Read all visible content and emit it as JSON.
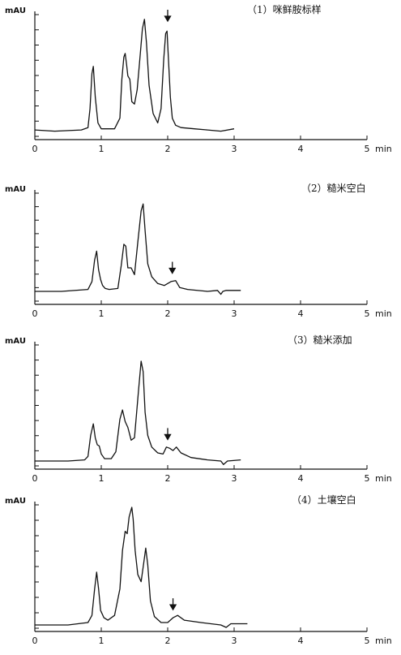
{
  "chart_data": [
    {
      "type": "line",
      "title": "（1）咪鲜胺标样",
      "ylabel": "mAU",
      "xunit": "min",
      "xlim": [
        0,
        5
      ],
      "ylim": [
        0,
        1
      ],
      "xticks": [
        "0",
        "1",
        "2",
        "3",
        "4",
        "5"
      ],
      "arrow_at": 2.0,
      "x": [
        0,
        0.3,
        0.7,
        0.8,
        0.83,
        0.86,
        0.88,
        0.91,
        0.95,
        1.0,
        1.2,
        1.28,
        1.31,
        1.34,
        1.36,
        1.38,
        1.4,
        1.43,
        1.46,
        1.5,
        1.54,
        1.58,
        1.62,
        1.65,
        1.68,
        1.72,
        1.78,
        1.85,
        1.9,
        1.94,
        1.97,
        1.99,
        2.01,
        2.04,
        2.07,
        2.12,
        2.2,
        2.4,
        2.6,
        2.8,
        3.0
      ],
      "y": [
        0.02,
        0.01,
        0.02,
        0.04,
        0.2,
        0.5,
        0.56,
        0.3,
        0.08,
        0.03,
        0.03,
        0.12,
        0.45,
        0.64,
        0.67,
        0.58,
        0.48,
        0.45,
        0.26,
        0.24,
        0.36,
        0.62,
        0.88,
        0.96,
        0.76,
        0.4,
        0.16,
        0.08,
        0.2,
        0.62,
        0.84,
        0.86,
        0.64,
        0.3,
        0.12,
        0.06,
        0.04,
        0.03,
        0.02,
        0.01,
        0.03
      ]
    },
    {
      "type": "line",
      "title": "（2）糙米空白",
      "ylabel": "mAU",
      "xunit": "min",
      "xlim": [
        0,
        5
      ],
      "ylim": [
        0,
        1
      ],
      "xticks": [
        "0",
        "1",
        "2",
        "3",
        "4",
        "5"
      ],
      "arrow_at": 2.07,
      "x": [
        0,
        0.4,
        0.8,
        0.86,
        0.9,
        0.93,
        0.96,
        0.99,
        1.02,
        1.06,
        1.12,
        1.25,
        1.3,
        1.34,
        1.37,
        1.4,
        1.45,
        1.5,
        1.55,
        1.6,
        1.63,
        1.66,
        1.7,
        1.76,
        1.85,
        1.95,
        2.05,
        2.12,
        2.18,
        2.3,
        2.6,
        2.75,
        2.8,
        2.83,
        2.88,
        3.0,
        3.1
      ],
      "y": [
        0.0,
        0.0,
        0.02,
        0.1,
        0.32,
        0.41,
        0.22,
        0.12,
        0.06,
        0.03,
        0.02,
        0.03,
        0.26,
        0.48,
        0.46,
        0.24,
        0.24,
        0.17,
        0.5,
        0.82,
        0.89,
        0.62,
        0.28,
        0.15,
        0.08,
        0.06,
        0.1,
        0.11,
        0.04,
        0.02,
        0.0,
        0.01,
        -0.03,
        0.0,
        0.01,
        0.01,
        0.01
      ]
    },
    {
      "type": "line",
      "title": "（3）糙米添加",
      "ylabel": "mAU",
      "xunit": "min",
      "xlim": [
        0,
        5
      ],
      "ylim": [
        0,
        1
      ],
      "xticks": [
        "0",
        "1",
        "2",
        "3",
        "4",
        "5"
      ],
      "arrow_at": 2.0,
      "x": [
        0,
        0.5,
        0.75,
        0.8,
        0.84,
        0.88,
        0.91,
        0.94,
        0.97,
        1.0,
        1.05,
        1.15,
        1.22,
        1.28,
        1.32,
        1.36,
        1.4,
        1.45,
        1.5,
        1.56,
        1.6,
        1.63,
        1.66,
        1.7,
        1.76,
        1.85,
        1.93,
        1.98,
        2.03,
        2.08,
        2.13,
        2.2,
        2.35,
        2.6,
        2.8,
        2.84,
        2.9,
        3.1
      ],
      "y": [
        0.0,
        0.0,
        0.01,
        0.04,
        0.22,
        0.32,
        0.2,
        0.14,
        0.13,
        0.06,
        0.02,
        0.02,
        0.08,
        0.36,
        0.44,
        0.34,
        0.29,
        0.18,
        0.2,
        0.6,
        0.86,
        0.77,
        0.42,
        0.22,
        0.12,
        0.07,
        0.06,
        0.12,
        0.11,
        0.09,
        0.12,
        0.07,
        0.03,
        0.01,
        0.0,
        -0.03,
        0.0,
        0.01
      ]
    },
    {
      "type": "line",
      "title": "（4）土壤空白",
      "ylabel": "mAU",
      "xunit": "min",
      "xlim": [
        0,
        5
      ],
      "ylim": [
        0,
        1
      ],
      "xticks": [
        "0",
        "1",
        "2",
        "3",
        "4",
        "5"
      ],
      "arrow_at": 2.08,
      "x": [
        0,
        0.5,
        0.8,
        0.86,
        0.9,
        0.93,
        0.96,
        0.99,
        1.04,
        1.1,
        1.2,
        1.28,
        1.32,
        1.36,
        1.39,
        1.42,
        1.46,
        1.48,
        1.51,
        1.55,
        1.6,
        1.64,
        1.67,
        1.7,
        1.74,
        1.8,
        1.9,
        2.0,
        2.08,
        2.15,
        2.25,
        2.5,
        2.8,
        2.88,
        2.95,
        3.2
      ],
      "y": [
        0.0,
        0.0,
        0.02,
        0.08,
        0.3,
        0.44,
        0.3,
        0.12,
        0.06,
        0.04,
        0.08,
        0.3,
        0.62,
        0.78,
        0.76,
        0.9,
        0.98,
        0.88,
        0.62,
        0.42,
        0.36,
        0.52,
        0.64,
        0.5,
        0.2,
        0.07,
        0.02,
        0.02,
        0.06,
        0.08,
        0.04,
        0.02,
        0.0,
        -0.02,
        0.01,
        0.01
      ]
    }
  ]
}
